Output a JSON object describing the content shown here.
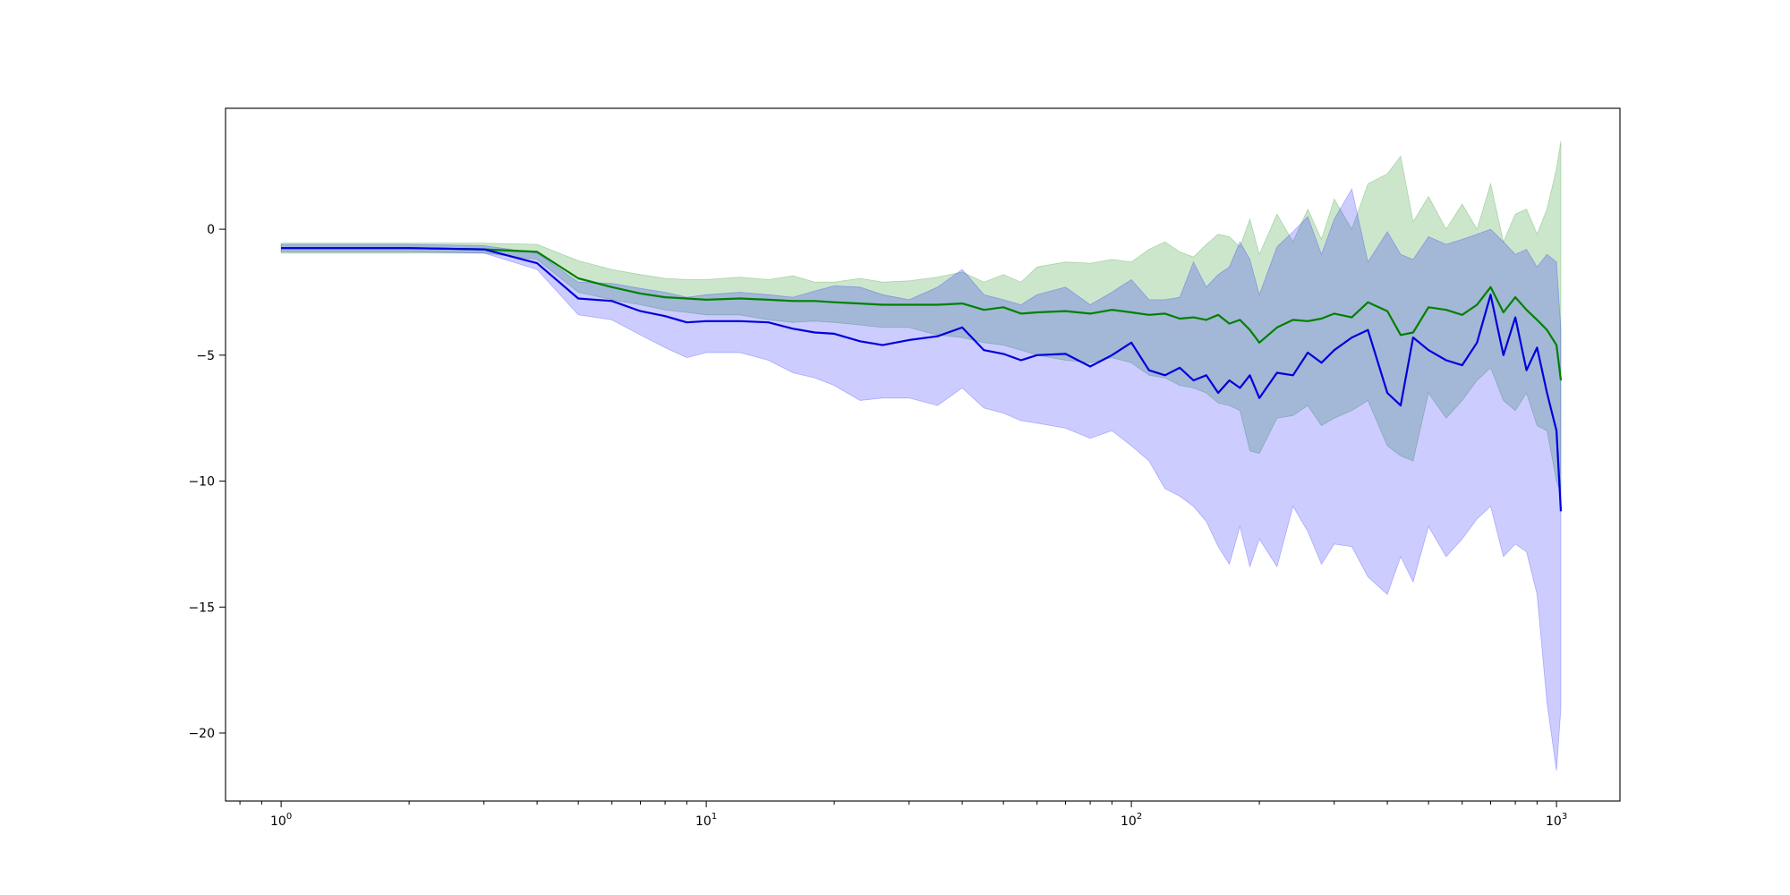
{
  "chart_data": {
    "type": "line",
    "title": "",
    "xlabel": "",
    "ylabel": "",
    "x_scale": "log",
    "xlim": [
      0.74,
      1410
    ],
    "ylim": [
      -22.7,
      4.8
    ],
    "grid": false,
    "legend": "none",
    "x_major_ticks": [
      {
        "value": 1,
        "base": "10",
        "exp": "0"
      },
      {
        "value": 10,
        "base": "10",
        "exp": "1"
      },
      {
        "value": 100,
        "base": "10",
        "exp": "2"
      },
      {
        "value": 1000,
        "base": "10",
        "exp": "3"
      }
    ],
    "x_minor_ticks": [
      0.8,
      0.9,
      2,
      3,
      4,
      5,
      6,
      7,
      8,
      9,
      20,
      30,
      40,
      50,
      60,
      70,
      80,
      90,
      200,
      300,
      400,
      500,
      600,
      700,
      800,
      900
    ],
    "y_ticks": [
      {
        "value": 0,
        "label": "0"
      },
      {
        "value": -5,
        "label": "−5"
      },
      {
        "value": -10,
        "label": "−10"
      },
      {
        "value": -15,
        "label": "−15"
      },
      {
        "value": -20,
        "label": "−20"
      }
    ],
    "series": [
      {
        "color": "#008000",
        "band_color": "#008000",
        "x": [
          1,
          2,
          3,
          4,
          5,
          6,
          7,
          8,
          9,
          10,
          12,
          14,
          16,
          18,
          20,
          23,
          26,
          30,
          35,
          40,
          45,
          50,
          55,
          60,
          70,
          80,
          90,
          100,
          110,
          120,
          130,
          140,
          150,
          160,
          170,
          180,
          190,
          200,
          220,
          240,
          260,
          280,
          300,
          330,
          360,
          400,
          430,
          460,
          500,
          550,
          600,
          650,
          700,
          750,
          800,
          850,
          900,
          950,
          1000,
          1024
        ],
        "y": [
          -0.75,
          -0.75,
          -0.8,
          -0.9,
          -1.95,
          -2.3,
          -2.55,
          -2.7,
          -2.75,
          -2.8,
          -2.75,
          -2.8,
          -2.85,
          -2.85,
          -2.9,
          -2.95,
          -3.0,
          -3.0,
          -3.0,
          -2.95,
          -3.2,
          -3.1,
          -3.35,
          -3.3,
          -3.25,
          -3.35,
          -3.2,
          -3.3,
          -3.4,
          -3.35,
          -3.55,
          -3.5,
          -3.6,
          -3.4,
          -3.75,
          -3.6,
          -4.0,
          -4.5,
          -3.9,
          -3.6,
          -3.65,
          -3.55,
          -3.35,
          -3.5,
          -2.9,
          -3.25,
          -4.2,
          -4.1,
          -3.1,
          -3.2,
          -3.4,
          -3.0,
          -2.3,
          -3.3,
          -2.7,
          -3.2,
          -3.6,
          -4.0,
          -4.6,
          -6.0
        ],
        "upper": [
          -0.55,
          -0.55,
          -0.55,
          -0.6,
          -1.25,
          -1.6,
          -1.8,
          -1.95,
          -2.0,
          -2.0,
          -1.9,
          -2.0,
          -1.85,
          -2.1,
          -2.1,
          -1.95,
          -2.1,
          -2.05,
          -1.9,
          -1.7,
          -2.1,
          -1.8,
          -2.1,
          -1.5,
          -1.3,
          -1.35,
          -1.2,
          -1.3,
          -0.8,
          -0.5,
          -0.9,
          -1.1,
          -0.6,
          -0.2,
          -0.3,
          -0.7,
          0.4,
          -1.0,
          0.6,
          -0.5,
          0.8,
          -0.4,
          1.2,
          0.0,
          1.8,
          2.2,
          2.9,
          0.3,
          1.3,
          0.0,
          1.0,
          0.0,
          1.8,
          -0.5,
          0.6,
          0.8,
          -0.2,
          0.8,
          2.4,
          3.5
        ],
        "lower": [
          -0.95,
          -0.95,
          -0.95,
          -1.2,
          -2.5,
          -2.8,
          -3.0,
          -3.2,
          -3.3,
          -3.4,
          -3.4,
          -3.6,
          -3.7,
          -3.65,
          -3.7,
          -3.8,
          -3.9,
          -3.9,
          -4.2,
          -4.3,
          -4.5,
          -4.6,
          -4.8,
          -5.0,
          -5.2,
          -5.3,
          -5.1,
          -5.3,
          -5.8,
          -5.9,
          -6.2,
          -6.3,
          -6.5,
          -6.9,
          -7.0,
          -7.2,
          -8.8,
          -8.9,
          -7.5,
          -7.4,
          -7.0,
          -7.8,
          -7.5,
          -7.2,
          -6.8,
          -8.6,
          -9.0,
          -9.2,
          -6.5,
          -7.5,
          -6.8,
          -6.0,
          -5.5,
          -6.8,
          -7.2,
          -6.5,
          -7.8,
          -8.0,
          -10.0,
          -10.5
        ]
      },
      {
        "color": "#0000dd",
        "band_color": "#0000ff",
        "x": [
          1,
          2,
          3,
          4,
          5,
          6,
          7,
          8,
          9,
          10,
          12,
          14,
          16,
          18,
          20,
          23,
          26,
          30,
          35,
          40,
          45,
          50,
          55,
          60,
          70,
          80,
          90,
          100,
          110,
          120,
          130,
          140,
          150,
          160,
          170,
          180,
          190,
          200,
          220,
          240,
          260,
          280,
          300,
          330,
          360,
          400,
          430,
          460,
          500,
          550,
          600,
          650,
          700,
          750,
          800,
          850,
          900,
          950,
          1000,
          1024
        ],
        "y": [
          -0.75,
          -0.75,
          -0.8,
          -1.35,
          -2.75,
          -2.85,
          -3.25,
          -3.45,
          -3.7,
          -3.65,
          -3.65,
          -3.7,
          -3.95,
          -4.1,
          -4.15,
          -4.45,
          -4.6,
          -4.4,
          -4.25,
          -3.9,
          -4.8,
          -4.95,
          -5.2,
          -5.0,
          -4.95,
          -5.45,
          -5.0,
          -4.5,
          -5.6,
          -5.8,
          -5.5,
          -6.0,
          -5.8,
          -6.5,
          -6.0,
          -6.3,
          -5.8,
          -6.7,
          -5.7,
          -5.8,
          -4.9,
          -5.3,
          -4.8,
          -4.3,
          -4.0,
          -6.5,
          -7.0,
          -4.3,
          -4.8,
          -5.2,
          -5.4,
          -4.5,
          -2.6,
          -5.0,
          -3.5,
          -5.6,
          -4.7,
          -6.5,
          -8.0,
          -11.2
        ],
        "upper": [
          -0.6,
          -0.6,
          -0.65,
          -0.95,
          -2.1,
          -2.15,
          -2.35,
          -2.5,
          -2.7,
          -2.6,
          -2.5,
          -2.6,
          -2.7,
          -2.45,
          -2.25,
          -2.3,
          -2.6,
          -2.8,
          -2.3,
          -1.6,
          -2.6,
          -2.8,
          -3.0,
          -2.6,
          -2.3,
          -3.0,
          -2.5,
          -2.0,
          -2.8,
          -2.8,
          -2.7,
          -1.3,
          -2.3,
          -1.8,
          -1.5,
          -0.5,
          -1.2,
          -2.6,
          -0.7,
          -0.1,
          0.5,
          -1.0,
          0.4,
          1.6,
          -1.3,
          -0.1,
          -1.0,
          -1.2,
          -0.3,
          -0.6,
          -0.4,
          -0.2,
          0.0,
          -0.5,
          -1.0,
          -0.8,
          -1.5,
          -1.0,
          -1.3,
          -4.0
        ],
        "lower": [
          -0.9,
          -0.9,
          -0.95,
          -1.6,
          -3.4,
          -3.6,
          -4.2,
          -4.7,
          -5.1,
          -4.9,
          -4.9,
          -5.2,
          -5.7,
          -5.9,
          -6.2,
          -6.8,
          -6.7,
          -6.7,
          -7.0,
          -6.3,
          -7.1,
          -7.3,
          -7.6,
          -7.7,
          -7.9,
          -8.3,
          -8.0,
          -8.6,
          -9.2,
          -10.3,
          -10.6,
          -11.0,
          -11.6,
          -12.6,
          -13.3,
          -11.8,
          -13.4,
          -12.3,
          -13.4,
          -11.0,
          -12.0,
          -13.3,
          -12.5,
          -12.6,
          -13.8,
          -14.5,
          -13.0,
          -14.0,
          -11.8,
          -13.0,
          -12.3,
          -11.5,
          -11.0,
          -13.0,
          -12.5,
          -12.8,
          -14.5,
          -18.8,
          -21.5,
          -19.0
        ]
      }
    ]
  }
}
